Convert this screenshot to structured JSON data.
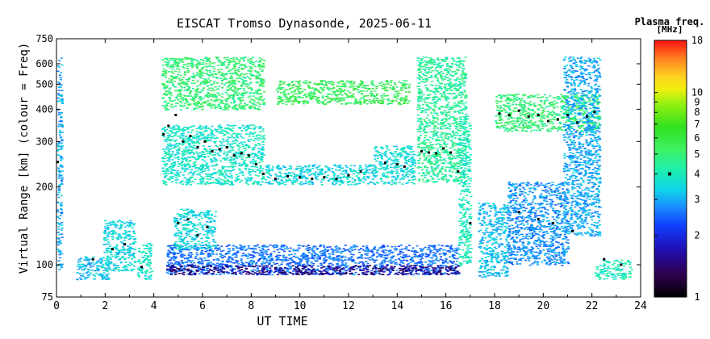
{
  "chart_data": {
    "type": "scatter",
    "title": "EISCAT Tromso Dynasonde, 2025-06-11",
    "xlabel": "UT TIME",
    "ylabel": "Virtual Range [km] (colour = Freq)",
    "xlim": [
      0,
      24
    ],
    "ylim": [
      75,
      750
    ],
    "y_scale": "log",
    "x_ticks": [
      0,
      2,
      4,
      6,
      8,
      10,
      12,
      14,
      16,
      18,
      20,
      22,
      24
    ],
    "y_ticks": [
      75,
      100,
      200,
      300,
      400,
      500,
      600,
      750
    ],
    "colorbar": {
      "title": "Plasma freq.",
      "unit": "[MHz]",
      "scale": "log",
      "range": [
        1,
        18
      ],
      "ticks": [
        1,
        2,
        3,
        4,
        5,
        6,
        7,
        8,
        9,
        10,
        18
      ],
      "marker_at": 4
    },
    "trace_clusters": [
      {
        "x_range": [
          0.0,
          0.2
        ],
        "h_range": [
          95,
          640
        ],
        "freq": 3.0
      },
      {
        "x_range": [
          0.8,
          2.2
        ],
        "h_range": [
          88,
          108
        ],
        "freq": 3.2
      },
      {
        "x_range": [
          1.9,
          3.2
        ],
        "h_range": [
          95,
          150
        ],
        "freq": 3.5
      },
      {
        "x_range": [
          3.3,
          3.9
        ],
        "h_range": [
          88,
          122
        ],
        "freq": 3.8
      },
      {
        "x_range": [
          4.3,
          8.5
        ],
        "h_range": [
          400,
          640
        ],
        "freq": 5.0
      },
      {
        "x_range": [
          4.3,
          8.5
        ],
        "h_range": [
          205,
          350
        ],
        "freq": 3.8
      },
      {
        "x_range": [
          4.5,
          16.5
        ],
        "h_range": [
          92,
          120
        ],
        "freq": 2.6
      },
      {
        "x_range": [
          4.5,
          16.5
        ],
        "h_range": [
          92,
          100
        ],
        "freq": 1.5
      },
      {
        "x_range": [
          4.8,
          6.5
        ],
        "h_range": [
          115,
          165
        ],
        "freq": 3.5
      },
      {
        "x_range": [
          8.5,
          13.0
        ],
        "h_range": [
          205,
          245
        ],
        "freq": 3.5
      },
      {
        "x_range": [
          9.0,
          14.5
        ],
        "h_range": [
          420,
          520
        ],
        "freq": 5.5
      },
      {
        "x_range": [
          13.0,
          14.7
        ],
        "h_range": [
          205,
          290
        ],
        "freq": 3.6
      },
      {
        "x_range": [
          14.8,
          16.8
        ],
        "h_range": [
          210,
          640
        ],
        "freq": 4.5
      },
      {
        "x_range": [
          16.5,
          17.0
        ],
        "h_range": [
          100,
          380
        ],
        "freq": 4.0
      },
      {
        "x_range": [
          17.3,
          18.5
        ],
        "h_range": [
          90,
          175
        ],
        "freq": 3.2
      },
      {
        "x_range": [
          18.5,
          21.0
        ],
        "h_range": [
          100,
          210
        ],
        "freq": 2.8
      },
      {
        "x_range": [
          18.0,
          22.3
        ],
        "h_range": [
          330,
          460
        ],
        "freq": 5.0
      },
      {
        "x_range": [
          20.8,
          22.3
        ],
        "h_range": [
          130,
          640
        ],
        "freq": 3.0
      },
      {
        "x_range": [
          22.1,
          23.6
        ],
        "h_range": [
          88,
          105
        ],
        "freq": 4.0
      }
    ],
    "peak_height_points": [
      [
        0.05,
        250
      ],
      [
        4.4,
        320
      ],
      [
        4.6,
        345
      ],
      [
        4.9,
        380
      ],
      [
        5.2,
        300
      ],
      [
        5.5,
        315
      ],
      [
        5.8,
        285
      ],
      [
        6.1,
        300
      ],
      [
        6.4,
        275
      ],
      [
        6.7,
        280
      ],
      [
        7.0,
        285
      ],
      [
        7.3,
        265
      ],
      [
        7.6,
        270
      ],
      [
        7.9,
        265
      ],
      [
        8.2,
        245
      ],
      [
        8.5,
        225
      ],
      [
        9.0,
        215
      ],
      [
        9.5,
        220
      ],
      [
        10.0,
        218
      ],
      [
        10.5,
        215
      ],
      [
        11.0,
        218
      ],
      [
        11.5,
        215
      ],
      [
        12.0,
        222
      ],
      [
        12.5,
        230
      ],
      [
        13.5,
        248
      ],
      [
        14.0,
        245
      ],
      [
        14.3,
        240
      ],
      [
        15.0,
        275
      ],
      [
        15.3,
        272
      ],
      [
        15.6,
        270
      ],
      [
        15.9,
        282
      ],
      [
        16.2,
        272
      ],
      [
        16.5,
        230
      ],
      [
        17.0,
        145
      ],
      [
        18.2,
        385
      ],
      [
        18.6,
        380
      ],
      [
        19.0,
        395
      ],
      [
        19.4,
        375
      ],
      [
        19.8,
        380
      ],
      [
        20.2,
        360
      ],
      [
        20.6,
        365
      ],
      [
        21.0,
        380
      ],
      [
        21.4,
        355
      ],
      [
        21.8,
        375
      ],
      [
        22.1,
        390
      ],
      [
        1.5,
        105
      ],
      [
        2.3,
        115
      ],
      [
        2.8,
        120
      ],
      [
        3.5,
        98
      ],
      [
        5.0,
        145
      ],
      [
        5.4,
        150
      ],
      [
        5.8,
        130
      ],
      [
        6.2,
        140
      ],
      [
        19.0,
        160
      ],
      [
        19.8,
        150
      ],
      [
        20.4,
        145
      ],
      [
        21.2,
        135
      ],
      [
        22.5,
        105
      ],
      [
        23.2,
        100
      ]
    ]
  }
}
